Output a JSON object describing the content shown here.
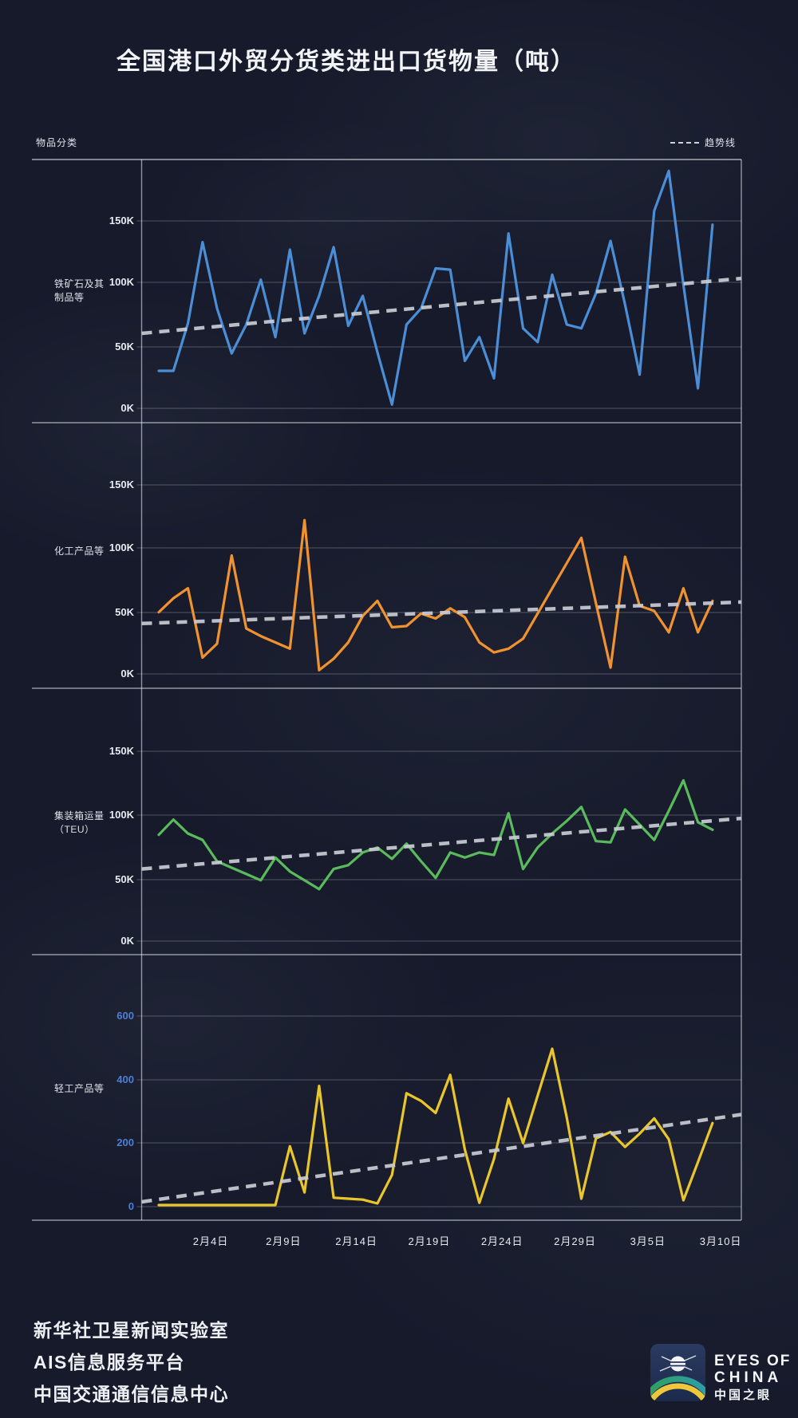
{
  "title": "全国港口外贸分货类进出口货物量（吨）",
  "header": {
    "category_label": "物品分类",
    "trend_legend_label": "趋势线"
  },
  "chart_data": {
    "type": "line",
    "x_tick_labels": [
      "2月4日",
      "2月9日",
      "2月14日",
      "2月19日",
      "2月24日",
      "2月29日",
      "3月5日",
      "3月10日"
    ],
    "legend_position": "top-right",
    "grid": "horizontal-only",
    "panels": [
      {
        "key": "iron-ore",
        "name": "铁矿石及其制品等",
        "label": "铁矿石及其\n制品等",
        "color": "#4b8ed6",
        "tick_color": "#e9ecf1",
        "ylim": [
          0,
          198
        ],
        "y_ticks": [
          {
            "label": "150K",
            "value": 150
          },
          {
            "label": "100K",
            "value": 100
          },
          {
            "label": "50K",
            "value": 50
          },
          {
            "label": "0K",
            "value": 0
          }
        ],
        "values": [
          30,
          30,
          68,
          133,
          80,
          44,
          67,
          103,
          57,
          127,
          60,
          90,
          129,
          66,
          90,
          45,
          3,
          67,
          80,
          112,
          111,
          38,
          57,
          24,
          140,
          64,
          53,
          107,
          67,
          64,
          92,
          134,
          83,
          27,
          158,
          190,
          99,
          16,
          147
        ],
        "trend_start": 60,
        "trend_end": 104
      },
      {
        "key": "chemical",
        "name": "化工产品等",
        "label": "化工产品等",
        "color": "#f0922f",
        "tick_color": "#e9ecf1",
        "ylim": [
          0,
          198
        ],
        "y_ticks": [
          {
            "label": "150K",
            "value": 150
          },
          {
            "label": "100K",
            "value": 100
          },
          {
            "label": "50K",
            "value": 50
          },
          {
            "label": "0K",
            "value": 0
          }
        ],
        "values": [
          49,
          60,
          68,
          13,
          24,
          94,
          36,
          30,
          25,
          20,
          122,
          3,
          12,
          25,
          46,
          58,
          37,
          38,
          48,
          44,
          52,
          45,
          25,
          17,
          20,
          28,
          48,
          68,
          88,
          108,
          56,
          5,
          93,
          54,
          50,
          33,
          68,
          33,
          58
        ],
        "trend_start": 40,
        "trend_end": 57
      },
      {
        "key": "container",
        "name": "集装箱运量（TEU）",
        "label": "集装箱运量\n（TEU）",
        "color": "#5abb5c",
        "tick_color": "#e9ecf1",
        "ylim": [
          0,
          198
        ],
        "y_ticks": [
          {
            "label": "150K",
            "value": 150
          },
          {
            "label": "100K",
            "value": 100
          },
          {
            "label": "50K",
            "value": 50
          },
          {
            "label": "0K",
            "value": 0
          }
        ],
        "values": [
          84,
          96,
          85,
          80,
          63,
          58,
          53,
          48,
          66,
          55,
          48,
          41,
          57,
          60,
          70,
          74,
          65,
          77,
          63,
          50,
          70,
          66,
          70,
          68,
          101,
          57,
          74,
          85,
          95,
          106,
          79,
          78,
          104,
          92,
          80,
          103,
          127,
          94,
          88
        ],
        "trend_start": 57,
        "trend_end": 97
      },
      {
        "key": "light-industry",
        "name": "轻工产品等",
        "label": "轻工产品等",
        "color": "#e9c62b",
        "tick_color": "#4c7fd6",
        "ylim": [
          0,
          790
        ],
        "y_ticks": [
          {
            "label": "600",
            "value": 600
          },
          {
            "label": "400",
            "value": 400
          },
          {
            "label": "200",
            "value": 200
          },
          {
            "label": "0",
            "value": 0
          }
        ],
        "values": [
          5,
          5,
          5,
          5,
          5,
          5,
          5,
          5,
          5,
          190,
          45,
          380,
          28,
          25,
          22,
          10,
          100,
          357,
          333,
          295,
          415,
          180,
          12,
          150,
          340,
          200,
          350,
          497,
          280,
          25,
          215,
          235,
          188,
          230,
          278,
          212,
          20,
          140,
          263
        ],
        "trend_start": 15,
        "trend_end": 290
      }
    ]
  },
  "footer": {
    "lines": [
      "新华社卫星新闻实验室",
      "AIS信息服务平台",
      "中国交通通信信息中心"
    ]
  },
  "logo": {
    "line1": "EYES OF",
    "line2": "CHINA",
    "line3": "中国之眼"
  },
  "colors": {
    "background": "#161a2b",
    "gridline": "rgba(255,255,255,0.25)",
    "separator": "rgba(228,232,240,0.6)",
    "trend_line": "#c9ccd3",
    "title_text": "#f2f4f7"
  }
}
